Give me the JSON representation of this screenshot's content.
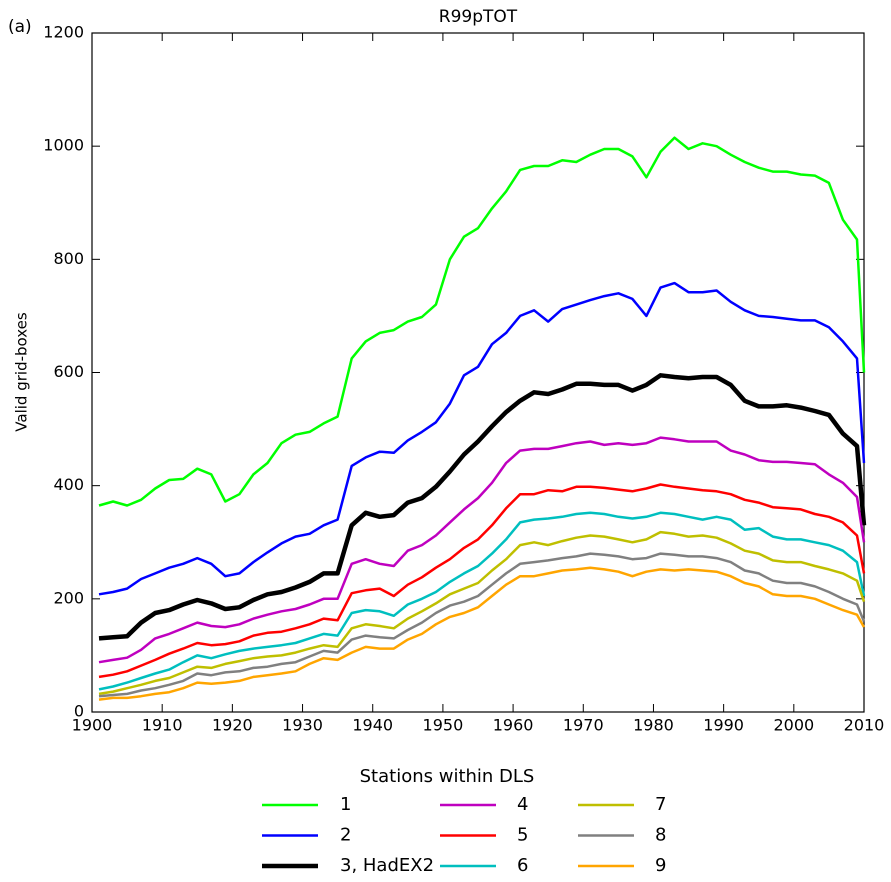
{
  "chart_data": {
    "type": "line",
    "title": "R99pTOT",
    "panel_label": "(a)",
    "ylabel": "Valid grid-boxes",
    "legend_title": "Stations within DLS",
    "x": [
      1901,
      1903,
      1905,
      1907,
      1909,
      1911,
      1913,
      1915,
      1917,
      1919,
      1921,
      1923,
      1925,
      1927,
      1929,
      1931,
      1933,
      1935,
      1937,
      1939,
      1941,
      1943,
      1945,
      1947,
      1949,
      1951,
      1953,
      1955,
      1957,
      1959,
      1961,
      1963,
      1965,
      1967,
      1969,
      1971,
      1973,
      1975,
      1977,
      1979,
      1981,
      1983,
      1985,
      1987,
      1989,
      1991,
      1993,
      1995,
      1997,
      1999,
      2001,
      2003,
      2005,
      2007,
      2009,
      2010
    ],
    "xlim": [
      1900,
      2010
    ],
    "xticks": [
      1900,
      1910,
      1920,
      1930,
      1940,
      1950,
      1960,
      1970,
      1980,
      1990,
      2000,
      2010
    ],
    "ylim": [
      0,
      1200
    ],
    "yticks": [
      0,
      200,
      400,
      600,
      800,
      1000,
      1200
    ],
    "series": [
      {
        "name": "1",
        "color": "#00ff00",
        "linewidth": 2.5,
        "values": [
          365,
          372,
          365,
          375,
          395,
          410,
          412,
          430,
          420,
          372,
          385,
          420,
          440,
          475,
          490,
          495,
          510,
          522,
          625,
          655,
          670,
          675,
          690,
          698,
          720,
          800,
          840,
          855,
          890,
          920,
          958,
          965,
          965,
          975,
          972,
          985,
          995,
          995,
          982,
          945,
          990,
          1015,
          995,
          1005,
          1000,
          985,
          972,
          962,
          955,
          955,
          950,
          948,
          935,
          870,
          835,
          600
        ]
      },
      {
        "name": "2",
        "color": "#0000ff",
        "linewidth": 2.5,
        "values": [
          208,
          212,
          218,
          235,
          245,
          255,
          262,
          272,
          262,
          240,
          245,
          265,
          282,
          298,
          310,
          315,
          330,
          340,
          435,
          450,
          460,
          458,
          480,
          495,
          512,
          545,
          595,
          610,
          650,
          670,
          700,
          710,
          690,
          712,
          720,
          728,
          735,
          740,
          730,
          700,
          750,
          758,
          742,
          742,
          745,
          725,
          710,
          700,
          698,
          695,
          692,
          692,
          680,
          655,
          625,
          440
        ]
      },
      {
        "name": "3, HadEX2",
        "color": "#000000",
        "linewidth": 4.5,
        "values": [
          130,
          132,
          134,
          158,
          175,
          180,
          190,
          198,
          192,
          182,
          185,
          198,
          208,
          212,
          220,
          230,
          245,
          245,
          330,
          352,
          345,
          348,
          370,
          378,
          398,
          425,
          455,
          478,
          505,
          530,
          550,
          565,
          562,
          570,
          580,
          580,
          578,
          578,
          568,
          578,
          595,
          592,
          590,
          592,
          592,
          578,
          550,
          540,
          540,
          542,
          538,
          532,
          525,
          492,
          470,
          330
        ]
      },
      {
        "name": "4",
        "color": "#bf00bf",
        "linewidth": 2.5,
        "values": [
          88,
          92,
          96,
          110,
          130,
          138,
          148,
          158,
          152,
          150,
          155,
          165,
          172,
          178,
          182,
          190,
          200,
          200,
          262,
          270,
          262,
          258,
          285,
          295,
          312,
          335,
          358,
          378,
          405,
          440,
          462,
          465,
          465,
          470,
          475,
          478,
          472,
          475,
          472,
          475,
          485,
          482,
          478,
          478,
          478,
          462,
          455,
          445,
          442,
          442,
          440,
          438,
          420,
          405,
          380,
          300
        ]
      },
      {
        "name": "5",
        "color": "#ff0000",
        "linewidth": 2.5,
        "values": [
          62,
          66,
          72,
          82,
          92,
          103,
          112,
          122,
          118,
          120,
          125,
          135,
          140,
          142,
          148,
          155,
          165,
          162,
          210,
          215,
          218,
          205,
          225,
          238,
          255,
          270,
          290,
          305,
          330,
          360,
          385,
          385,
          392,
          390,
          398,
          398,
          396,
          393,
          390,
          395,
          402,
          398,
          395,
          392,
          390,
          385,
          375,
          370,
          362,
          360,
          358,
          350,
          345,
          335,
          312,
          245
        ]
      },
      {
        "name": "6",
        "color": "#00bfbf",
        "linewidth": 2.5,
        "values": [
          40,
          45,
          52,
          60,
          68,
          75,
          88,
          100,
          95,
          102,
          108,
          112,
          115,
          118,
          122,
          130,
          138,
          135,
          175,
          180,
          178,
          170,
          190,
          200,
          212,
          230,
          245,
          258,
          280,
          305,
          335,
          340,
          342,
          345,
          350,
          352,
          350,
          345,
          342,
          345,
          352,
          350,
          345,
          340,
          345,
          340,
          322,
          325,
          310,
          305,
          305,
          300,
          295,
          285,
          265,
          205
        ]
      },
      {
        "name": "7",
        "color": "#bfbf00",
        "linewidth": 2.5,
        "values": [
          32,
          36,
          42,
          48,
          55,
          60,
          70,
          80,
          78,
          85,
          90,
          95,
          98,
          100,
          105,
          112,
          118,
          115,
          148,
          155,
          152,
          148,
          165,
          178,
          192,
          208,
          218,
          228,
          250,
          270,
          295,
          300,
          295,
          302,
          308,
          312,
          310,
          305,
          300,
          305,
          318,
          315,
          310,
          312,
          308,
          298,
          285,
          280,
          268,
          265,
          265,
          258,
          252,
          245,
          232,
          195
        ]
      },
      {
        "name": "8",
        "color": "#808080",
        "linewidth": 2.5,
        "values": [
          28,
          30,
          32,
          38,
          42,
          48,
          55,
          68,
          65,
          70,
          72,
          78,
          80,
          85,
          88,
          98,
          108,
          105,
          128,
          135,
          132,
          130,
          145,
          158,
          175,
          188,
          195,
          205,
          225,
          245,
          262,
          265,
          268,
          272,
          275,
          280,
          278,
          275,
          270,
          272,
          280,
          278,
          275,
          275,
          272,
          265,
          250,
          245,
          232,
          228,
          228,
          222,
          212,
          200,
          190,
          160
        ]
      },
      {
        "name": "9",
        "color": "#ffa500",
        "linewidth": 2.5,
        "values": [
          22,
          25,
          25,
          28,
          32,
          35,
          42,
          52,
          50,
          52,
          55,
          62,
          65,
          68,
          72,
          85,
          95,
          92,
          105,
          115,
          112,
          112,
          128,
          138,
          155,
          168,
          175,
          185,
          205,
          225,
          240,
          240,
          245,
          250,
          252,
          255,
          252,
          248,
          240,
          248,
          252,
          250,
          252,
          250,
          248,
          240,
          228,
          222,
          208,
          205,
          205,
          200,
          190,
          180,
          172,
          150
        ]
      }
    ]
  }
}
